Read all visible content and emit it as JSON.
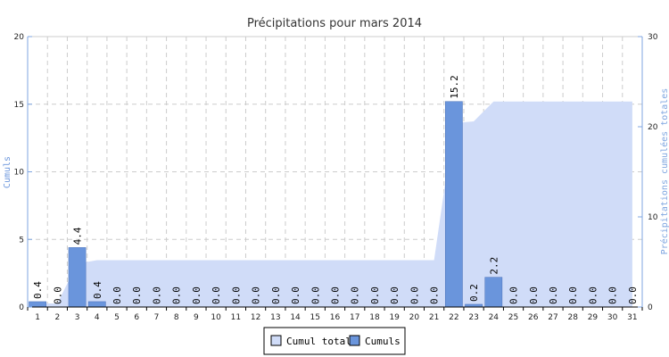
{
  "chart_data": {
    "type": "bar",
    "title": "Précipitations pour mars 2014",
    "ylabel": "Cumuls",
    "y2label": "Précipitations cumulées totales",
    "ylim": [
      0,
      20
    ],
    "y2lim": [
      0,
      30
    ],
    "yticks": [
      "0",
      "5",
      "10",
      "15",
      "20"
    ],
    "y2ticks": [
      "0",
      "10",
      "20",
      "30"
    ],
    "grid": true,
    "legend_position": "bottom-center",
    "categories": [
      "1",
      "2",
      "3",
      "4",
      "5",
      "6",
      "7",
      "8",
      "9",
      "10",
      "11",
      "12",
      "13",
      "14",
      "15",
      "16",
      "17",
      "18",
      "19",
      "20",
      "21",
      "22",
      "23",
      "24",
      "25",
      "26",
      "27",
      "28",
      "29",
      "30",
      "31"
    ],
    "series": [
      {
        "name": "Cumul total",
        "type": "area",
        "axis": "right",
        "color": "#d0dcf8",
        "values": [
          0.4,
          0.4,
          4.8,
          5.2,
          5.2,
          5.2,
          5.2,
          5.2,
          5.2,
          5.2,
          5.2,
          5.2,
          5.2,
          5.2,
          5.2,
          5.2,
          5.2,
          5.2,
          5.2,
          5.2,
          5.2,
          20.4,
          20.6,
          22.8,
          22.8,
          22.8,
          22.8,
          22.8,
          22.8,
          22.8,
          22.8
        ]
      },
      {
        "name": "Cumuls",
        "type": "bar",
        "axis": "left",
        "color": "#6a95dc",
        "values": [
          0.4,
          0.0,
          4.4,
          0.4,
          0.0,
          0.0,
          0.0,
          0.0,
          0.0,
          0.0,
          0.0,
          0.0,
          0.0,
          0.0,
          0.0,
          0.0,
          0.0,
          0.0,
          0.0,
          0.0,
          0.0,
          15.2,
          0.2,
          2.2,
          0.0,
          0.0,
          0.0,
          0.0,
          0.0,
          0.0,
          0.0
        ],
        "labels": [
          "0.4",
          "0.0",
          "4.4",
          "0.4",
          "0.0",
          "0.0",
          "0.0",
          "0.0",
          "0.0",
          "0.0",
          "0.0",
          "0.0",
          "0.0",
          "0.0",
          "0.0",
          "0.0",
          "0.0",
          "0.0",
          "0.0",
          "0.0",
          "0.0",
          "15.2",
          "0.2",
          "2.2",
          "0.0",
          "0.0",
          "0.0",
          "0.0",
          "0.0",
          "0.0",
          "0.0"
        ]
      }
    ]
  }
}
